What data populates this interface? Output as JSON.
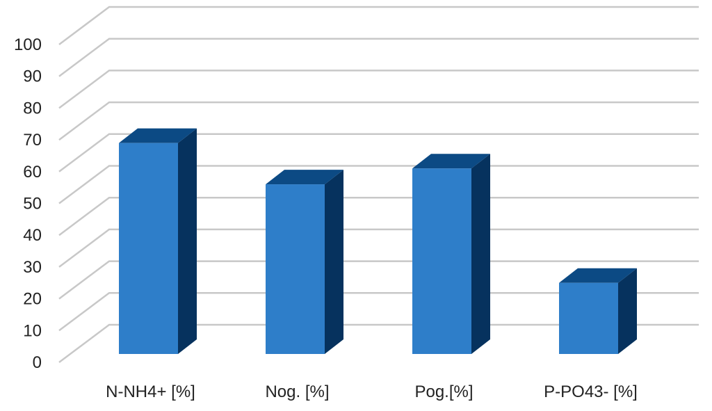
{
  "chart_data": {
    "type": "bar",
    "style": "3d-column",
    "categories": [
      "N-NH4+ [%]",
      "Nog. [%]",
      "Pog.[%]",
      "P-PO43- [%]"
    ],
    "series": [
      {
        "values": [
          69,
          56,
          61,
          25
        ]
      }
    ],
    "ylim": [
      0,
      100
    ],
    "yticks": [
      "0",
      "10",
      "20",
      "30",
      "40",
      "50",
      "60",
      "70",
      "80",
      "90",
      "100"
    ],
    "title": "",
    "xlabel": "",
    "ylabel": "",
    "grid": true,
    "legend": "none",
    "colors": {
      "front": "#2e7ec9",
      "side": "#06325e",
      "top": "#0c4a84",
      "grid": "#c8c8c8"
    }
  }
}
